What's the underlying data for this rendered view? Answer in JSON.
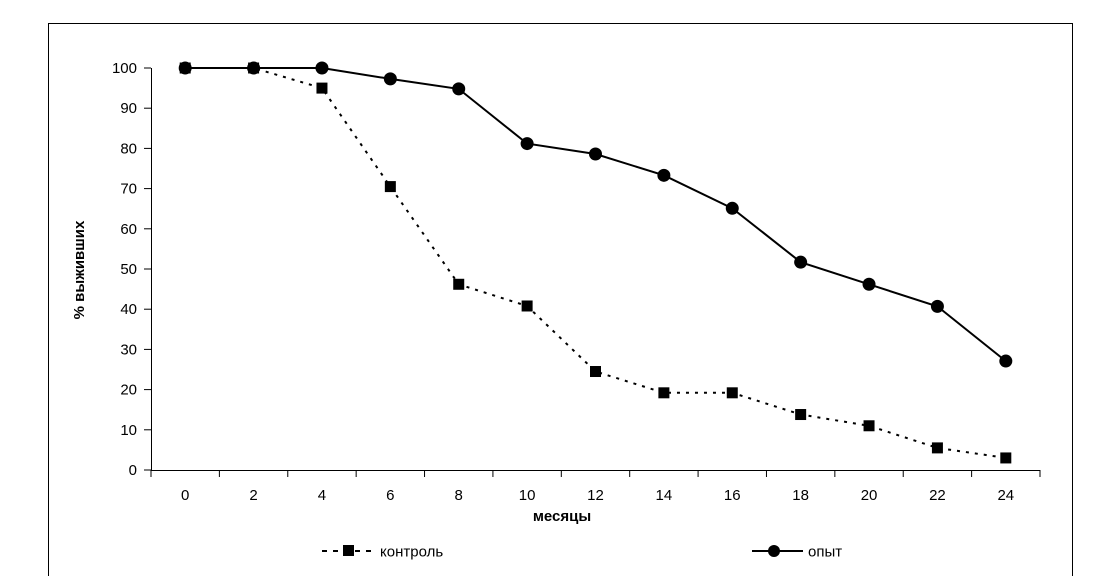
{
  "chart_data": {
    "type": "line",
    "title": "",
    "xlabel": "месяцы",
    "ylabel": "% выживших",
    "x": [
      0,
      2,
      4,
      6,
      8,
      10,
      12,
      14,
      16,
      18,
      20,
      22,
      24
    ],
    "xlim": [
      -1,
      25
    ],
    "ylim": [
      0,
      100
    ],
    "yticks": [
      0,
      10,
      20,
      30,
      40,
      50,
      60,
      70,
      80,
      90,
      100
    ],
    "grid": false,
    "legend_position": "bottom",
    "series": [
      {
        "name": "контроль",
        "marker": "square",
        "line_style": "dotted",
        "color": "#000000",
        "values": [
          100,
          100,
          95,
          70.5,
          46.2,
          40.8,
          24.5,
          19.2,
          19.2,
          13.8,
          11,
          5.5,
          3
        ]
      },
      {
        "name": "опыт",
        "marker": "circle",
        "line_style": "solid",
        "color": "#000000",
        "values": [
          100,
          100,
          100,
          97.3,
          94.8,
          81.2,
          78.6,
          73.3,
          65.1,
          51.7,
          46.2,
          40.7,
          27.1
        ]
      }
    ]
  }
}
